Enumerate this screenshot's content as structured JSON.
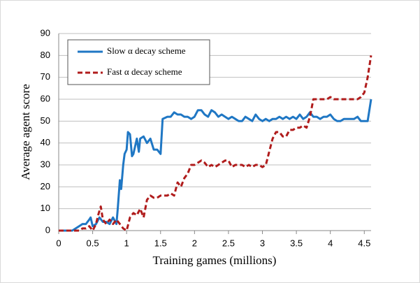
{
  "chart_data": {
    "type": "line",
    "x_label": "Training games (millions)",
    "y_label": "Average agent score",
    "xlim": [
      0,
      4.6
    ],
    "xticks": [
      0,
      0.5,
      1,
      1.5,
      2,
      2.5,
      3,
      3.5,
      4,
      4.5
    ],
    "ylim": [
      0,
      90
    ],
    "yticks": [
      0,
      10,
      20,
      30,
      40,
      50,
      60,
      70,
      80,
      90
    ],
    "grid": true,
    "legend": "upper left",
    "series": [
      {
        "name": "Slow α decay scheme",
        "color": "#1f77c4",
        "dash": false,
        "x": [
          0,
          0.2,
          0.25,
          0.3,
          0.35,
          0.4,
          0.45,
          0.47,
          0.5,
          0.55,
          0.6,
          0.65,
          0.7,
          0.75,
          0.8,
          0.85,
          0.87,
          0.9,
          0.92,
          0.95,
          0.97,
          1.0,
          1.02,
          1.05,
          1.08,
          1.1,
          1.15,
          1.18,
          1.2,
          1.25,
          1.3,
          1.35,
          1.4,
          1.45,
          1.5,
          1.53,
          1.6,
          1.65,
          1.7,
          1.75,
          1.8,
          1.85,
          1.9,
          1.95,
          2.0,
          2.05,
          2.1,
          2.15,
          2.2,
          2.25,
          2.3,
          2.35,
          2.4,
          2.45,
          2.5,
          2.55,
          2.6,
          2.65,
          2.7,
          2.75,
          2.8,
          2.85,
          2.9,
          2.95,
          3.0,
          3.05,
          3.1,
          3.15,
          3.2,
          3.25,
          3.3,
          3.35,
          3.4,
          3.45,
          3.5,
          3.55,
          3.6,
          3.65,
          3.7,
          3.75,
          3.8,
          3.85,
          3.9,
          3.95,
          4.0,
          4.05,
          4.1,
          4.15,
          4.2,
          4.25,
          4.3,
          4.35,
          4.4,
          4.45,
          4.5,
          4.55,
          4.6
        ],
        "values": [
          0,
          0,
          1,
          2,
          3,
          3,
          5,
          6,
          2,
          3,
          6,
          4,
          4,
          3,
          6,
          3,
          10,
          23,
          19,
          30,
          35,
          37,
          45,
          44,
          34,
          35,
          42,
          36,
          42,
          43,
          40,
          42,
          37,
          37,
          35,
          51,
          52,
          52,
          54,
          53,
          53,
          52,
          52,
          51,
          52,
          55,
          55,
          53,
          52,
          55,
          54,
          52,
          53,
          52,
          51,
          52,
          51,
          50,
          50,
          52,
          51,
          50,
          53,
          51,
          50,
          51,
          50,
          51,
          51,
          52,
          51,
          52,
          51,
          52,
          51,
          53,
          51,
          52,
          54,
          52,
          52,
          51,
          52,
          52,
          53,
          51,
          50,
          50,
          51,
          51,
          51,
          51,
          52,
          50,
          50,
          50,
          60
        ]
      },
      {
        "name": "Fast α decay scheme",
        "color": "#b01c1c",
        "dash": true,
        "x": [
          0,
          0.3,
          0.35,
          0.4,
          0.45,
          0.5,
          0.55,
          0.58,
          0.62,
          0.65,
          0.7,
          0.75,
          0.8,
          0.85,
          0.9,
          0.95,
          1.0,
          1.05,
          1.1,
          1.15,
          1.2,
          1.25,
          1.3,
          1.35,
          1.4,
          1.45,
          1.5,
          1.55,
          1.6,
          1.65,
          1.7,
          1.75,
          1.8,
          1.85,
          1.9,
          1.95,
          2.0,
          2.05,
          2.1,
          2.15,
          2.2,
          2.25,
          2.3,
          2.35,
          2.4,
          2.45,
          2.5,
          2.55,
          2.6,
          2.65,
          2.7,
          2.75,
          2.8,
          2.85,
          2.9,
          2.95,
          3.0,
          3.05,
          3.1,
          3.15,
          3.2,
          3.25,
          3.3,
          3.35,
          3.4,
          3.45,
          3.5,
          3.55,
          3.6,
          3.65,
          3.7,
          3.75,
          3.8,
          3.85,
          3.9,
          3.95,
          4.0,
          4.05,
          4.1,
          4.2,
          4.3,
          4.4,
          4.45,
          4.5,
          4.55,
          4.6
        ],
        "values": [
          0,
          0,
          1,
          1,
          2,
          0,
          3,
          7,
          11,
          5,
          3,
          5,
          3,
          5,
          3,
          1,
          0,
          6,
          8,
          7,
          10,
          6,
          14,
          16,
          15,
          15,
          16,
          16,
          16,
          17,
          16,
          22,
          20,
          24,
          26,
          30,
          30,
          31,
          32,
          31,
          29,
          30,
          29,
          30,
          31,
          32,
          32,
          29,
          30,
          30,
          30,
          29,
          30,
          29,
          30,
          30,
          29,
          30,
          36,
          42,
          45,
          45,
          43,
          43,
          46,
          46,
          47,
          47,
          48,
          47,
          52,
          60,
          60,
          60,
          60,
          60,
          61,
          60,
          60,
          60,
          60,
          60,
          61,
          63,
          70,
          80
        ]
      }
    ]
  }
}
